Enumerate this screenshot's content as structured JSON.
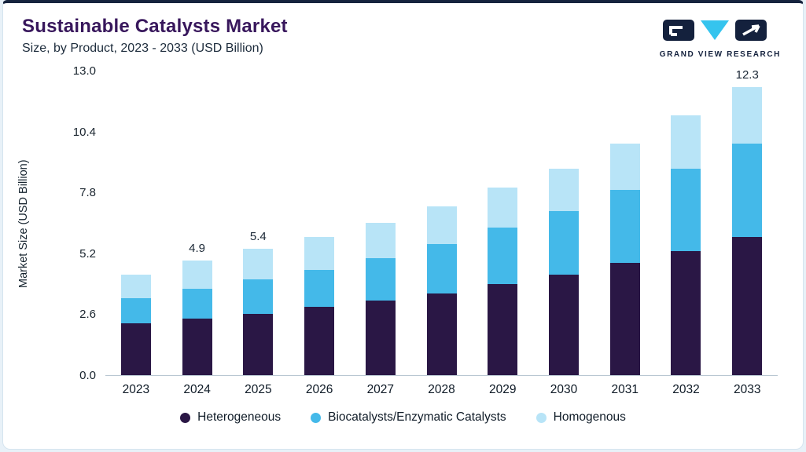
{
  "page": {
    "title": "Sustainable Catalysts Market",
    "subtitle": "Size, by Product, 2023 - 2033 (USD Billion)",
    "brand": "GRAND VIEW RESEARCH"
  },
  "chart_data": {
    "type": "bar",
    "stacked": true,
    "title": "Sustainable Catalysts Market Size, by Product, 2023 - 2033 (USD Billion)",
    "xlabel": "",
    "ylabel": "Market Size (USD Billion)",
    "ylim": [
      0,
      13
    ],
    "yticks": [
      0,
      2.6,
      5.2,
      7.8,
      10.4,
      13
    ],
    "grid": false,
    "legend_position": "bottom",
    "categories": [
      "2023",
      "2024",
      "2025",
      "2026",
      "2027",
      "2028",
      "2029",
      "2030",
      "2031",
      "2032",
      "2033"
    ],
    "series": [
      {
        "name": "Heterogeneous",
        "color": "#2a1745",
        "values": [
          2.2,
          2.4,
          2.6,
          2.9,
          3.2,
          3.5,
          3.9,
          4.3,
          4.8,
          5.3,
          5.9
        ]
      },
      {
        "name": "Biocatalysts/Enzymatic Catalysts",
        "color": "#44b9e9",
        "values": [
          1.1,
          1.3,
          1.5,
          1.6,
          1.8,
          2.1,
          2.4,
          2.7,
          3.1,
          3.5,
          4.0
        ]
      },
      {
        "name": "Homogenous",
        "color": "#b8e4f7",
        "values": [
          1.0,
          1.2,
          1.3,
          1.4,
          1.5,
          1.6,
          1.7,
          1.8,
          2.0,
          2.3,
          2.4
        ]
      }
    ],
    "total_labels": [
      "",
      "4.9",
      "5.4",
      "",
      "",
      "",
      "",
      "",
      "",
      "",
      "12.3"
    ],
    "totals": [
      4.3,
      4.9,
      5.4,
      5.9,
      6.5,
      7.2,
      8.0,
      8.8,
      9.9,
      11.1,
      12.3
    ]
  },
  "colors": {
    "accent_top_border": "#16233e",
    "title": "#38175c",
    "background": "#e8f1f8",
    "logo_navy": "#14213d",
    "logo_cyan": "#35c4ee"
  }
}
